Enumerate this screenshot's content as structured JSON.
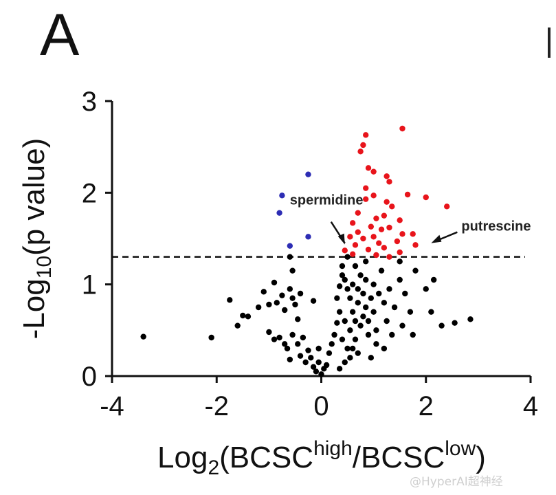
{
  "panel_letter": "A",
  "watermark": "@HyperAI超神经",
  "chart_data": {
    "type": "scatter",
    "title": "",
    "xlabel": "Log2(BCSChigh/BCSClow)",
    "xlabel_parts": {
      "prefix": "Log",
      "sub": "2",
      "open": "(BCSC",
      "sup1": "high",
      "mid": "/BCSC",
      "sup2": "low",
      "close": ")"
    },
    "ylabel": "-Log10(p value)",
    "ylabel_parts": {
      "prefix": "-Log",
      "sub": "10",
      "rest": "(p value)"
    },
    "xlim": [
      -4,
      4
    ],
    "ylim": [
      0,
      3
    ],
    "xticks": [
      "-4",
      "-2",
      "0",
      "2",
      "4"
    ],
    "yticks": [
      "0",
      "1",
      "2",
      "3"
    ],
    "grid": false,
    "threshold_y": 1.3,
    "annotations": [
      {
        "text": "spermidine",
        "x": 0.45,
        "y": 1.42
      },
      {
        "text": "putrescine",
        "x": 2.1,
        "y": 1.45
      }
    ],
    "colors": {
      "up": "#e8141b",
      "down": "#2d2db4",
      "ns": "#000000"
    },
    "series": [
      {
        "color": "up",
        "points": [
          [
            1.55,
            2.7
          ],
          [
            0.85,
            2.63
          ],
          [
            0.8,
            2.52
          ],
          [
            0.75,
            2.45
          ],
          [
            0.9,
            2.27
          ],
          [
            1.0,
            2.23
          ],
          [
            1.25,
            2.18
          ],
          [
            1.3,
            2.12
          ],
          [
            0.85,
            2.05
          ],
          [
            1.0,
            1.97
          ],
          [
            1.65,
            1.98
          ],
          [
            2.0,
            1.95
          ],
          [
            0.85,
            1.93
          ],
          [
            1.25,
            1.9
          ],
          [
            1.35,
            1.85
          ],
          [
            2.4,
            1.85
          ],
          [
            0.7,
            1.78
          ],
          [
            1.05,
            1.72
          ],
          [
            1.2,
            1.75
          ],
          [
            1.5,
            1.7
          ],
          [
            0.6,
            1.67
          ],
          [
            0.95,
            1.63
          ],
          [
            1.15,
            1.6
          ],
          [
            1.3,
            1.62
          ],
          [
            0.7,
            1.57
          ],
          [
            1.55,
            1.55
          ],
          [
            0.55,
            1.52
          ],
          [
            0.8,
            1.5
          ],
          [
            1.0,
            1.52
          ],
          [
            1.1,
            1.45
          ],
          [
            1.45,
            1.47
          ],
          [
            1.75,
            1.55
          ],
          [
            0.65,
            1.43
          ],
          [
            0.9,
            1.38
          ],
          [
            1.2,
            1.4
          ],
          [
            0.45,
            1.37
          ],
          [
            0.6,
            1.33
          ],
          [
            1.5,
            1.35
          ],
          [
            1.8,
            1.43
          ],
          [
            1.05,
            1.32
          ],
          [
            1.3,
            1.3
          ]
        ]
      },
      {
        "color": "down",
        "points": [
          [
            -0.25,
            2.2
          ],
          [
            -0.75,
            1.97
          ],
          [
            -0.8,
            1.78
          ],
          [
            -0.25,
            1.52
          ],
          [
            -0.6,
            1.42
          ]
        ]
      },
      {
        "color": "ns",
        "points": [
          [
            -3.4,
            0.43
          ],
          [
            -2.1,
            0.42
          ],
          [
            -1.75,
            0.83
          ],
          [
            -1.6,
            0.55
          ],
          [
            -1.5,
            0.66
          ],
          [
            -1.4,
            0.65
          ],
          [
            -1.2,
            0.75
          ],
          [
            -1.1,
            0.92
          ],
          [
            -1.0,
            0.78
          ],
          [
            -0.9,
            1.02
          ],
          [
            -0.85,
            0.8
          ],
          [
            -0.75,
            0.88
          ],
          [
            -0.7,
            0.72
          ],
          [
            -0.6,
            0.95
          ],
          [
            -0.55,
            0.85
          ],
          [
            -0.5,
            0.78
          ],
          [
            -0.45,
            0.62
          ],
          [
            -0.4,
            0.9
          ],
          [
            -1.0,
            0.48
          ],
          [
            -0.9,
            0.4
          ],
          [
            -0.8,
            0.42
          ],
          [
            -0.7,
            0.35
          ],
          [
            -0.65,
            0.3
          ],
          [
            -0.55,
            0.45
          ],
          [
            -0.45,
            0.35
          ],
          [
            -0.4,
            0.22
          ],
          [
            -0.35,
            0.42
          ],
          [
            -0.3,
            0.15
          ],
          [
            -0.25,
            0.28
          ],
          [
            -0.2,
            0.2
          ],
          [
            -0.15,
            0.1
          ],
          [
            -0.1,
            0.05
          ],
          [
            0.0,
            0.02
          ],
          [
            0.05,
            0.08
          ],
          [
            -0.05,
            0.15
          ],
          [
            -0.6,
            0.18
          ],
          [
            -0.55,
            1.15
          ],
          [
            -0.15,
            0.82
          ],
          [
            -0.05,
            0.3
          ],
          [
            0.1,
            0.12
          ],
          [
            0.15,
            0.25
          ],
          [
            0.2,
            0.35
          ],
          [
            0.25,
            0.45
          ],
          [
            0.3,
            0.58
          ],
          [
            0.35,
            0.7
          ],
          [
            0.3,
            0.85
          ],
          [
            0.35,
            0.98
          ],
          [
            0.4,
            1.1
          ],
          [
            0.4,
            1.2
          ],
          [
            0.45,
            1.05
          ],
          [
            0.45,
            0.6
          ],
          [
            0.4,
            0.4
          ],
          [
            0.5,
            0.3
          ],
          [
            0.55,
            0.85
          ],
          [
            0.5,
            0.95
          ],
          [
            0.55,
            0.5
          ],
          [
            0.6,
            0.7
          ],
          [
            0.6,
            1.0
          ],
          [
            0.65,
            0.4
          ],
          [
            0.65,
            0.6
          ],
          [
            0.7,
            0.8
          ],
          [
            0.7,
            0.95
          ],
          [
            0.75,
            1.1
          ],
          [
            0.75,
            0.55
          ],
          [
            0.8,
            0.65
          ],
          [
            0.8,
            0.9
          ],
          [
            0.85,
            0.75
          ],
          [
            0.85,
            1.05
          ],
          [
            0.9,
            0.45
          ],
          [
            0.9,
            0.6
          ],
          [
            0.95,
            0.85
          ],
          [
            1.0,
            1.0
          ],
          [
            1.0,
            0.7
          ],
          [
            1.05,
            0.5
          ],
          [
            1.1,
            0.9
          ],
          [
            1.15,
            1.15
          ],
          [
            1.2,
            0.8
          ],
          [
            1.25,
            0.6
          ],
          [
            1.3,
            0.95
          ],
          [
            1.35,
            0.45
          ],
          [
            1.4,
            0.75
          ],
          [
            1.5,
            1.05
          ],
          [
            1.55,
            0.55
          ],
          [
            1.6,
            0.9
          ],
          [
            1.7,
            0.7
          ],
          [
            1.75,
            0.45
          ],
          [
            1.8,
            1.15
          ],
          [
            2.0,
            0.95
          ],
          [
            2.1,
            0.7
          ],
          [
            2.15,
            1.05
          ],
          [
            2.3,
            0.55
          ],
          [
            2.55,
            0.58
          ],
          [
            2.85,
            0.62
          ],
          [
            1.5,
            1.25
          ],
          [
            0.55,
            0.2
          ],
          [
            0.45,
            0.15
          ],
          [
            0.35,
            0.08
          ],
          [
            0.6,
            0.3
          ],
          [
            0.7,
            0.25
          ],
          [
            1.05,
            0.35
          ],
          [
            1.2,
            0.3
          ],
          [
            0.95,
            0.2
          ],
          [
            -0.6,
            1.3
          ],
          [
            0.85,
            1.25
          ],
          [
            0.65,
            1.2
          ],
          [
            0.5,
            1.3
          ]
        ]
      }
    ]
  }
}
